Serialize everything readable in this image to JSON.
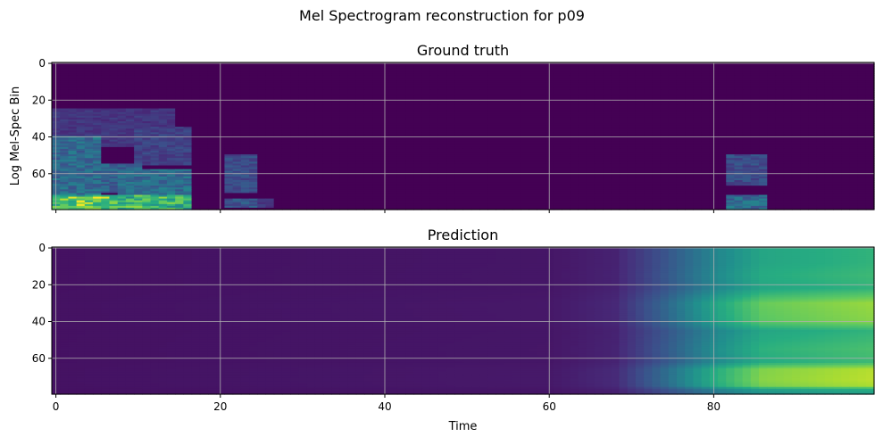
{
  "figure": {
    "suptitle": "Mel Spectrogram reconstruction for p09"
  },
  "chart_data": [
    {
      "type": "heatmap",
      "title": "Ground truth",
      "xlabel": "",
      "ylabel": "Log Mel-Spec Bin",
      "xlim": [
        -0.5,
        99.5
      ],
      "ylim": [
        79.5,
        -0.5
      ],
      "y_inverted": true,
      "xticks": [
        0,
        20,
        40,
        60,
        80
      ],
      "xtick_labels_visible": false,
      "yticks": [
        0,
        20,
        40,
        60
      ],
      "grid": true,
      "colormap": "viridis",
      "background_value": 0.0,
      "blobs": [
        {
          "x": [
            0,
            16
          ],
          "y": [
            72,
            79
          ],
          "intensity": 0.85
        },
        {
          "x": [
            0,
            7
          ],
          "y": [
            73,
            78
          ],
          "intensity": 1.0
        },
        {
          "x": [
            0,
            5
          ],
          "y": [
            40,
            72
          ],
          "intensity": 0.45
        },
        {
          "x": [
            2,
            10
          ],
          "y": [
            55,
            70
          ],
          "intensity": 0.4
        },
        {
          "x": [
            8,
            16
          ],
          "y": [
            58,
            78
          ],
          "intensity": 0.45
        },
        {
          "x": [
            0,
            14
          ],
          "y": [
            25,
            45
          ],
          "intensity": 0.2
        },
        {
          "x": [
            10,
            16
          ],
          "y": [
            35,
            55
          ],
          "intensity": 0.25
        },
        {
          "x": [
            21,
            24
          ],
          "y": [
            50,
            70
          ],
          "intensity": 0.3
        },
        {
          "x": [
            21,
            24
          ],
          "y": [
            74,
            78
          ],
          "intensity": 0.35
        },
        {
          "x": [
            25,
            26
          ],
          "y": [
            74,
            78
          ],
          "intensity": 0.2
        },
        {
          "x": [
            82,
            86
          ],
          "y": [
            50,
            66
          ],
          "intensity": 0.3
        },
        {
          "x": [
            82,
            86
          ],
          "y": [
            72,
            79
          ],
          "intensity": 0.45
        }
      ]
    },
    {
      "type": "heatmap",
      "title": "Prediction",
      "xlabel": "Time",
      "ylabel": "",
      "xlim": [
        -0.5,
        99.5
      ],
      "ylim": [
        79.5,
        -0.5
      ],
      "y_inverted": true,
      "xticks": [
        0,
        20,
        40,
        60,
        80
      ],
      "yticks": [
        0,
        20,
        40,
        60
      ],
      "grid": true,
      "colormap": "viridis",
      "time_profile": [
        {
          "x": 0,
          "value": 0.05
        },
        {
          "x": 60,
          "value": 0.07
        },
        {
          "x": 68,
          "value": 0.12
        },
        {
          "x": 74,
          "value": 0.35
        },
        {
          "x": 80,
          "value": 0.62
        },
        {
          "x": 86,
          "value": 0.82
        },
        {
          "x": 99,
          "value": 0.9
        }
      ],
      "frequency_profile": [
        {
          "y": 0,
          "value": 0.55
        },
        {
          "y": 8,
          "value": 0.55
        },
        {
          "y": 15,
          "value": 0.6
        },
        {
          "y": 22,
          "value": 0.55
        },
        {
          "y": 30,
          "value": 0.9
        },
        {
          "y": 40,
          "value": 0.85
        },
        {
          "y": 45,
          "value": 0.55
        },
        {
          "y": 55,
          "value": 0.65
        },
        {
          "y": 62,
          "value": 0.6
        },
        {
          "y": 66,
          "value": 0.98
        },
        {
          "y": 72,
          "value": 1.0
        },
        {
          "y": 75,
          "value": 0.95
        },
        {
          "y": 77,
          "value": 0.5
        },
        {
          "y": 79,
          "value": 0.4
        }
      ]
    }
  ]
}
